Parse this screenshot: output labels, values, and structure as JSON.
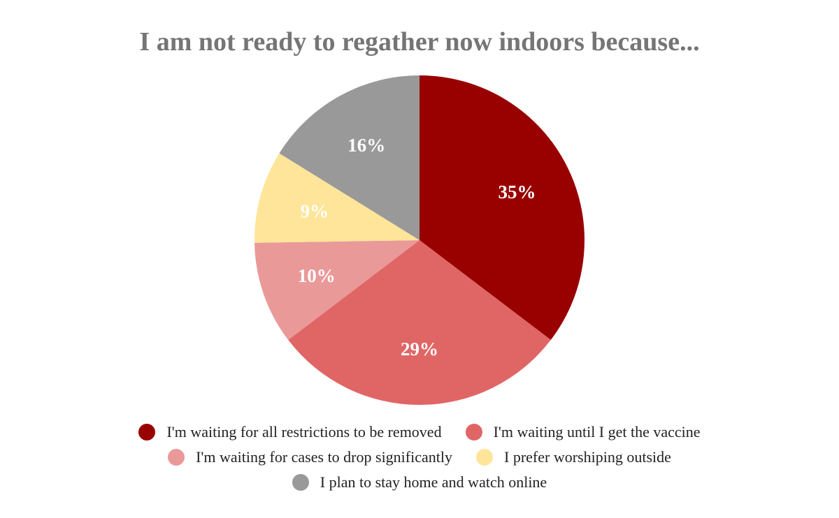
{
  "chart_data": {
    "type": "pie",
    "title": "I am not ready to regather now indoors because...",
    "start": "12 o'clock",
    "direction": "clockwise",
    "legend_position": "bottom",
    "slices": [
      {
        "name": "I'm waiting for all restrictions to be removed",
        "value": 35,
        "label": "35%",
        "color": "#990000"
      },
      {
        "name": "I'm waiting until I get the vaccine",
        "value": 29,
        "label": "29%",
        "color": "#e06666"
      },
      {
        "name": "I'm waiting for cases to drop significantly",
        "value": 10,
        "label": "10%",
        "color": "#ea9999"
      },
      {
        "name": "I prefer worshiping outside",
        "value": 9,
        "label": "9%",
        "color": "#ffe599"
      },
      {
        "name": "I plan to stay home and watch online",
        "value": 16,
        "label": "16%",
        "color": "#999999"
      }
    ]
  }
}
